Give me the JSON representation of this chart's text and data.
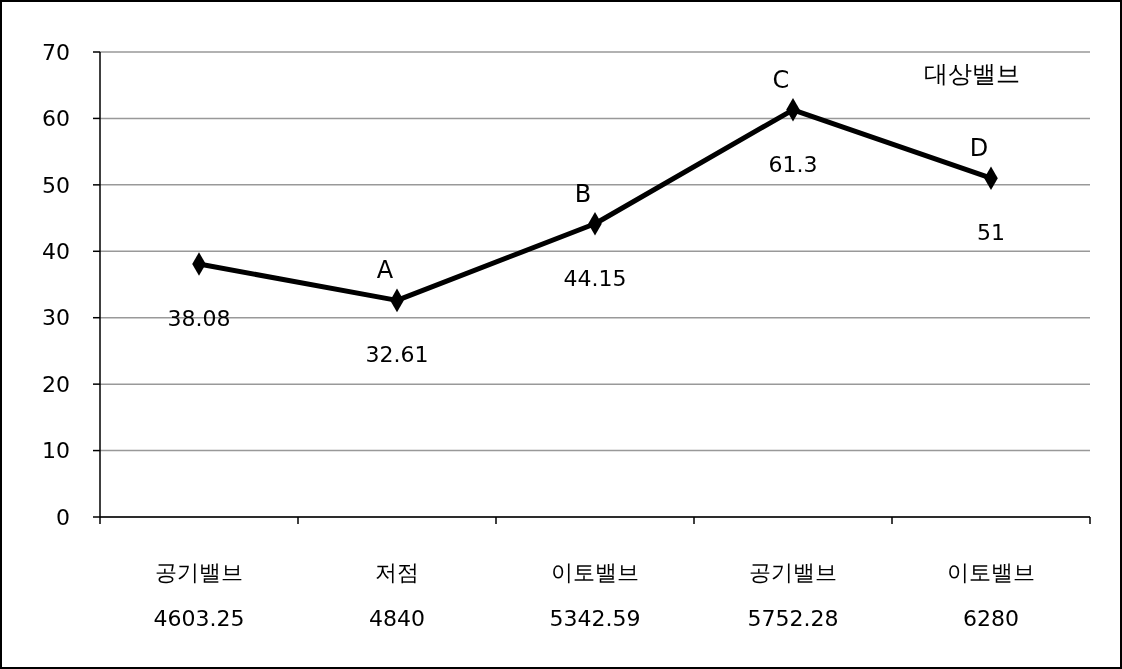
{
  "chart_data": {
    "type": "line",
    "categories": [
      "공기밸브\n4603.25",
      "저점\n4840",
      "이토밸브\n5342.59",
      "공기밸브\n5752.28",
      "이토밸브\n6280"
    ],
    "series": [
      {
        "color": "#000000",
        "values": [
          38.08,
          32.61,
          44.15,
          61.3,
          51
        ]
      }
    ],
    "ylim": [
      0,
      70
    ],
    "yticks": [
      0,
      10,
      20,
      30,
      40,
      50,
      60,
      70
    ],
    "grid": "y",
    "marker": "diamond",
    "line_style": "solid",
    "data_labels": true,
    "annotations": [
      {
        "text": "A",
        "x": "저점\n4840",
        "y": 32.61
      },
      {
        "text": "B",
        "x": "이토밸브\n5342.59",
        "y": 44.15
      },
      {
        "text": "C",
        "x": "공기밸브\n5752.28",
        "y": 61.3
      },
      {
        "text": "D",
        "x": "이토밸브\n6280",
        "y": 51
      },
      "대상밸브"
    ]
  }
}
